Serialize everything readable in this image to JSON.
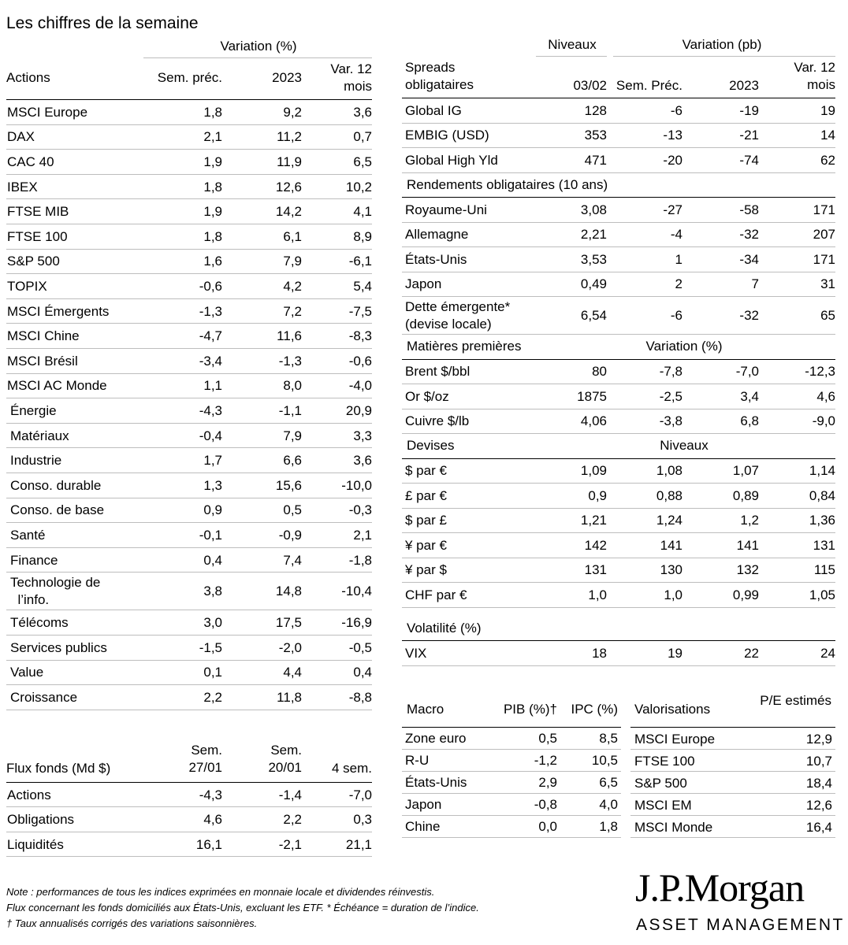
{
  "title": "Les chiffres de la semaine",
  "actions": {
    "group_header": "Variation (%)",
    "col_label": "Actions",
    "columns": [
      "Sem. préc.",
      "2023",
      "Var. 12\nmois"
    ],
    "rows": [
      {
        "name": "MSCI Europe",
        "v": [
          "1,8",
          "9,2",
          "3,6"
        ]
      },
      {
        "name": "DAX",
        "v": [
          "2,1",
          "11,2",
          "0,7"
        ]
      },
      {
        "name": "CAC 40",
        "v": [
          "1,9",
          "11,9",
          "6,5"
        ]
      },
      {
        "name": "IBEX",
        "v": [
          "1,8",
          "12,6",
          "10,2"
        ]
      },
      {
        "name": "FTSE MIB",
        "v": [
          "1,9",
          "14,2",
          "4,1"
        ]
      },
      {
        "name": "FTSE 100",
        "v": [
          "1,8",
          "6,1",
          "8,9"
        ]
      },
      {
        "name": "S&P 500",
        "v": [
          "1,6",
          "7,9",
          "-6,1"
        ]
      },
      {
        "name": "TOPIX",
        "v": [
          "-0,6",
          "4,2",
          "5,4"
        ]
      },
      {
        "name": "MSCI Émergents",
        "v": [
          "-1,3",
          "7,2",
          "-7,5"
        ]
      },
      {
        "name": "MSCI Chine",
        "v": [
          "-4,7",
          "11,6",
          "-8,3"
        ]
      },
      {
        "name": "MSCI Brésil",
        "v": [
          "-3,4",
          "-1,3",
          "-0,6"
        ]
      },
      {
        "name": "MSCI AC Monde",
        "v": [
          "1,1",
          "8,0",
          "-4,0"
        ]
      },
      {
        "name": "Énergie",
        "v": [
          "-4,3",
          "-1,1",
          "20,9"
        ],
        "indent": true
      },
      {
        "name": "Matériaux",
        "v": [
          "-0,4",
          "7,9",
          "3,3"
        ],
        "indent": true
      },
      {
        "name": "Industrie",
        "v": [
          "1,7",
          "6,6",
          "3,6"
        ],
        "indent": true
      },
      {
        "name": "Conso. durable",
        "v": [
          "1,3",
          "15,6",
          "-10,0"
        ],
        "indent": true
      },
      {
        "name": "Conso. de base",
        "v": [
          "0,9",
          "0,5",
          "-0,3"
        ],
        "indent": true
      },
      {
        "name": "Santé",
        "v": [
          "-0,1",
          "-0,9",
          "2,1"
        ],
        "indent": true
      },
      {
        "name": "Finance",
        "v": [
          "0,4",
          "7,4",
          "-1,8"
        ],
        "indent": true
      },
      {
        "name": "Technologie de\n  l’info.",
        "v": [
          "3,8",
          "14,8",
          "-10,4"
        ],
        "indent": true,
        "tall": true
      },
      {
        "name": "Télécoms",
        "v": [
          "3,0",
          "17,5",
          "-16,9"
        ],
        "indent": true
      },
      {
        "name": "Services publics",
        "v": [
          "-1,5",
          "-2,0",
          "-0,5"
        ],
        "indent": true
      },
      {
        "name": "Value",
        "v": [
          "0,1",
          "4,4",
          "0,4"
        ],
        "indent": true
      },
      {
        "name": "Croissance",
        "v": [
          "2,2",
          "11,8",
          "-8,8"
        ],
        "indent": true
      }
    ]
  },
  "flux": {
    "col_label": "Flux fonds (Md $)",
    "columns": [
      "Sem.\n27/01",
      "Sem.\n20/01",
      "4 sem."
    ],
    "rows": [
      {
        "name": "Actions",
        "v": [
          "-4,3",
          "-1,4",
          "-7,0"
        ]
      },
      {
        "name": "Obligations",
        "v": [
          "4,6",
          "2,2",
          "0,3"
        ]
      },
      {
        "name": "Liquidités",
        "v": [
          "16,1",
          "-2,1",
          "21,1"
        ]
      }
    ]
  },
  "right": {
    "group_niveaux": "Niveaux",
    "group_variation": "Variation (pb)",
    "col_label": "Spreads\nobligataires",
    "columns": [
      "03/02",
      "Sem. Préc.",
      "2023",
      "Var. 12\nmois"
    ],
    "spreads": [
      {
        "name": "Global IG",
        "v": [
          "128",
          "-6",
          "-19",
          "19"
        ]
      },
      {
        "name": "EMBIG (USD)",
        "v": [
          "353",
          "-13",
          "-21",
          "14"
        ]
      },
      {
        "name": "Global High Yld",
        "v": [
          "471",
          "-20",
          "-74",
          "62"
        ]
      }
    ],
    "rendements_label": "Rendements obligataires (10 ans)",
    "rendements": [
      {
        "name": "Royaume-Uni",
        "v": [
          "3,08",
          "-27",
          "-58",
          "171"
        ]
      },
      {
        "name": "Allemagne",
        "v": [
          "2,21",
          "-4",
          "-32",
          "207"
        ]
      },
      {
        "name": "États-Unis",
        "v": [
          "3,53",
          "1",
          "-34",
          "171"
        ]
      },
      {
        "name": "Japon",
        "v": [
          "0,49",
          "2",
          "7",
          "31"
        ]
      },
      {
        "name": "Dette émergente*\n(devise locale)",
        "v": [
          "6,54",
          "-6",
          "-32",
          "65"
        ],
        "tall": true
      }
    ],
    "matieres_label": "Matières premières",
    "matieres_sub": "Variation (%)",
    "matieres": [
      {
        "name": "Brent $/bbl",
        "v": [
          "80",
          "-7,8",
          "-7,0",
          "-12,3"
        ]
      },
      {
        "name": "Or $/oz",
        "v": [
          "1875",
          "-2,5",
          "3,4",
          "4,6"
        ]
      },
      {
        "name": "Cuivre $/lb",
        "v": [
          "4,06",
          "-3,8",
          "6,8",
          "-9,0"
        ]
      }
    ],
    "devises_label": "Devises",
    "devises_sub": "Niveaux",
    "devises": [
      {
        "name": "$ par €",
        "v": [
          "1,09",
          "1,08",
          "1,07",
          "1,14"
        ]
      },
      {
        "name": "£ par €",
        "v": [
          "0,9",
          "0,88",
          "0,89",
          "0,84"
        ]
      },
      {
        "name": "$ par £",
        "v": [
          "1,21",
          "1,24",
          "1,2",
          "1,36"
        ]
      },
      {
        "name": "¥ par €",
        "v": [
          "142",
          "141",
          "141",
          "131"
        ]
      },
      {
        "name": "¥ par $",
        "v": [
          "131",
          "130",
          "132",
          "115"
        ]
      },
      {
        "name": "CHF par €",
        "v": [
          "1,0",
          "1,0",
          "0,99",
          "1,05"
        ]
      }
    ],
    "volatilite_label": "Volatilité (%)",
    "volatilite": [
      {
        "name": "VIX",
        "v": [
          "18",
          "19",
          "22",
          "24"
        ]
      }
    ]
  },
  "macro": {
    "col_label": "Macro",
    "columns": [
      "PIB (%)†",
      "IPC (%)"
    ],
    "rows": [
      {
        "name": "Zone euro",
        "v": [
          "0,5",
          "8,5"
        ]
      },
      {
        "name": "R-U",
        "v": [
          "-1,2",
          "10,5"
        ]
      },
      {
        "name": "États-Unis",
        "v": [
          "2,9",
          "6,5"
        ]
      },
      {
        "name": "Japon",
        "v": [
          "-0,8",
          "4,0"
        ]
      },
      {
        "name": "Chine",
        "v": [
          "0,0",
          "1,8"
        ]
      }
    ]
  },
  "valorisations": {
    "col_label": "Valorisations",
    "column": "P/E estimés",
    "rows": [
      {
        "name": "MSCI Europe",
        "v": "12,9"
      },
      {
        "name": "FTSE 100",
        "v": "10,7"
      },
      {
        "name": "S&P 500",
        "v": "18,4"
      },
      {
        "name": "MSCI EM",
        "v": "12,6"
      },
      {
        "name": "MSCI Monde",
        "v": "16,4"
      }
    ]
  },
  "notes": [
    "Note : performances de tous les indices exprimées en monnaie locale et dividendes réinvestis.",
    "Flux concernant les fonds domiciliés aux États-Unis, excluant les ETF. * Échéance = duration de l’indice.",
    "† Taux annualisés corrigés des variations saisonnières."
  ],
  "logo": {
    "main": "J.P.Morgan",
    "sub": "ASSET MANAGEMENT"
  }
}
